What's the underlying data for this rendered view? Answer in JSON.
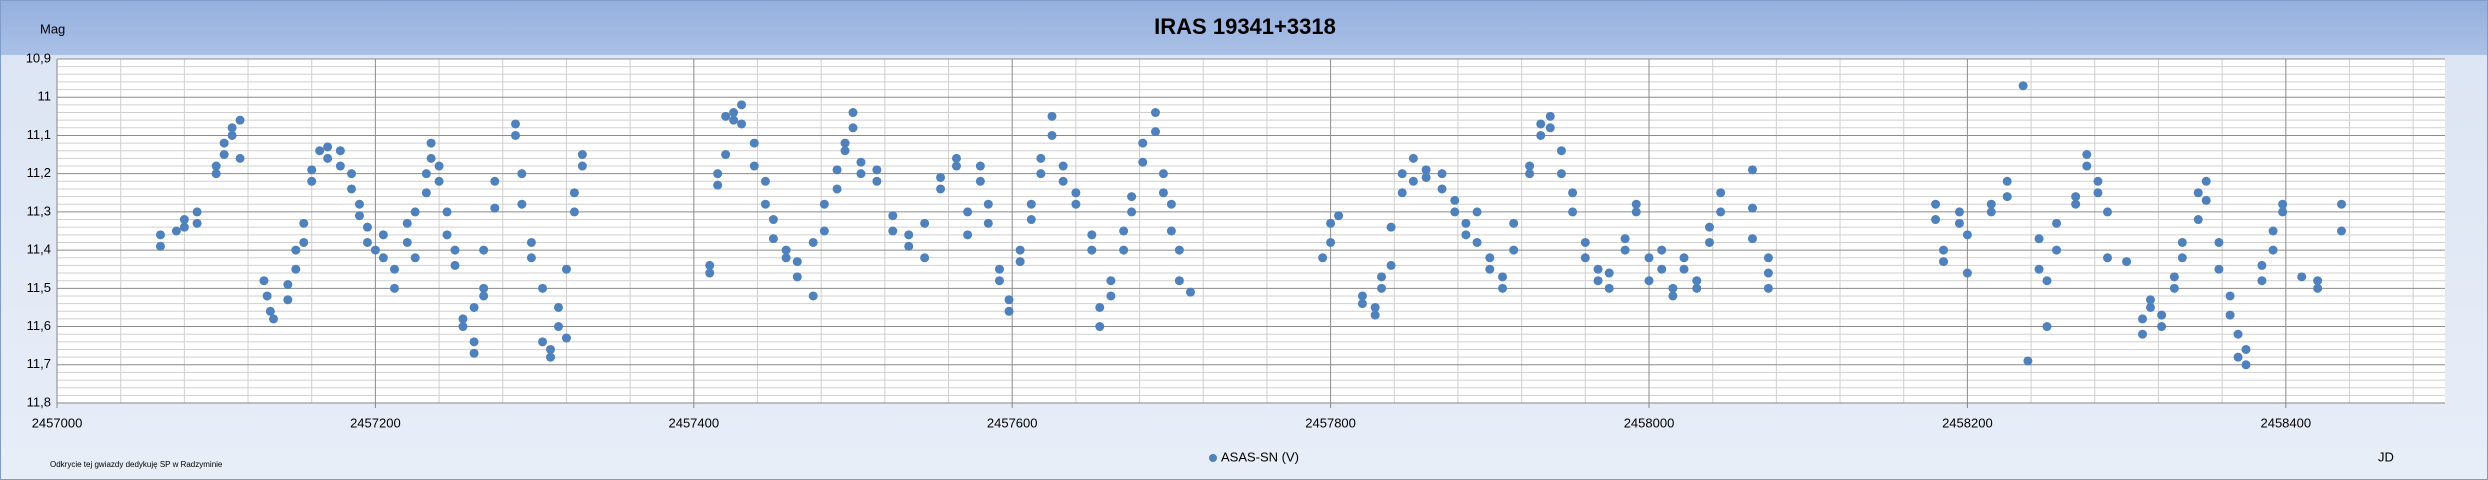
{
  "chart_data": {
    "type": "scatter",
    "title": "IRAS 19341+3318",
    "y_label": "Mag",
    "x_label": "JD",
    "footnote": "Odkrycie tej gwiazdy dedykuję SP w Radzyminie",
    "series": [
      {
        "name": "ASAS-SN (V)",
        "color": "#4f81bd",
        "x": [
          2457065,
          2457065,
          2457075,
          2457080,
          2457080,
          2457088,
          2457088,
          2457100,
          2457100,
          2457105,
          2457105,
          2457110,
          2457110,
          2457115,
          2457115,
          2457130,
          2457132,
          2457134,
          2457136,
          2457145,
          2457145,
          2457150,
          2457150,
          2457155,
          2457155,
          2457160,
          2457160,
          2457165,
          2457170,
          2457170,
          2457178,
          2457178,
          2457185,
          2457185,
          2457190,
          2457190,
          2457195,
          2457195,
          2457200,
          2457205,
          2457205,
          2457212,
          2457212,
          2457220,
          2457220,
          2457225,
          2457225,
          2457232,
          2457232,
          2457235,
          2457235,
          2457240,
          2457240,
          2457245,
          2457245,
          2457250,
          2457250,
          2457255,
          2457255,
          2457262,
          2457262,
          2457262,
          2457268,
          2457268,
          2457268,
          2457275,
          2457275,
          2457288,
          2457288,
          2457292,
          2457292,
          2457298,
          2457298,
          2457305,
          2457305,
          2457310,
          2457310,
          2457315,
          2457315,
          2457320,
          2457320,
          2457325,
          2457325,
          2457330,
          2457330,
          2457410,
          2457410,
          2457415,
          2457415,
          2457420,
          2457420,
          2457425,
          2457425,
          2457430,
          2457430,
          2457438,
          2457438,
          2457445,
          2457445,
          2457450,
          2457450,
          2457458,
          2457458,
          2457465,
          2457465,
          2457475,
          2457475,
          2457482,
          2457482,
          2457490,
          2457490,
          2457495,
          2457495,
          2457500,
          2457500,
          2457505,
          2457505,
          2457515,
          2457515,
          2457525,
          2457525,
          2457535,
          2457535,
          2457545,
          2457545,
          2457555,
          2457555,
          2457565,
          2457565,
          2457572,
          2457572,
          2457580,
          2457580,
          2457585,
          2457585,
          2457592,
          2457592,
          2457598,
          2457598,
          2457605,
          2457605,
          2457612,
          2457612,
          2457618,
          2457618,
          2457625,
          2457625,
          2457632,
          2457632,
          2457640,
          2457640,
          2457650,
          2457650,
          2457655,
          2457655,
          2457662,
          2457662,
          2457670,
          2457670,
          2457675,
          2457675,
          2457682,
          2457682,
          2457690,
          2457690,
          2457695,
          2457695,
          2457700,
          2457700,
          2457705,
          2457705,
          2457712,
          2457795,
          2457800,
          2457800,
          2457805,
          2457820,
          2457820,
          2457828,
          2457828,
          2457832,
          2457832,
          2457838,
          2457838,
          2457845,
          2457845,
          2457852,
          2457852,
          2457860,
          2457860,
          2457870,
          2457870,
          2457878,
          2457878,
          2457885,
          2457885,
          2457892,
          2457892,
          2457900,
          2457900,
          2457908,
          2457908,
          2457915,
          2457915,
          2457925,
          2457925,
          2457932,
          2457932,
          2457938,
          2457938,
          2457945,
          2457945,
          2457952,
          2457952,
          2457960,
          2457960,
          2457968,
          2457968,
          2457975,
          2457975,
          2457985,
          2457985,
          2457992,
          2457992,
          2458000,
          2458000,
          2458008,
          2458008,
          2458015,
          2458015,
          2458022,
          2458022,
          2458030,
          2458030,
          2458038,
          2458038,
          2458045,
          2458045,
          2458065,
          2458065,
          2458065,
          2458075,
          2458075,
          2458075,
          2458180,
          2458180,
          2458185,
          2458185,
          2458195,
          2458195,
          2458200,
          2458200,
          2458215,
          2458215,
          2458225,
          2458225,
          2458235,
          2458238,
          2458245,
          2458245,
          2458250,
          2458250,
          2458256,
          2458256,
          2458268,
          2458268,
          2458275,
          2458275,
          2458282,
          2458282,
          2458288,
          2458288,
          2458300,
          2458310,
          2458310,
          2458315,
          2458315,
          2458322,
          2458322,
          2458330,
          2458330,
          2458335,
          2458335,
          2458345,
          2458345,
          2458350,
          2458350,
          2458358,
          2458358,
          2458365,
          2458365,
          2458370,
          2458370,
          2458375,
          2458375,
          2458385,
          2458385,
          2458392,
          2458392,
          2458398,
          2458398,
          2458410,
          2458420,
          2458420,
          2458435,
          2458435
        ],
        "values": [
          11.36,
          11.39,
          11.35,
          11.32,
          11.34,
          11.3,
          11.33,
          11.2,
          11.18,
          11.12,
          11.15,
          11.08,
          11.1,
          11.06,
          11.16,
          11.48,
          11.52,
          11.56,
          11.58,
          11.49,
          11.53,
          11.4,
          11.45,
          11.33,
          11.38,
          11.22,
          11.19,
          11.14,
          11.13,
          11.16,
          11.14,
          11.18,
          11.2,
          11.24,
          11.28,
          11.31,
          11.34,
          11.38,
          11.4,
          11.36,
          11.42,
          11.45,
          11.5,
          11.38,
          11.33,
          11.3,
          11.42,
          11.25,
          11.2,
          11.12,
          11.16,
          11.18,
          11.22,
          11.3,
          11.36,
          11.4,
          11.44,
          11.58,
          11.6,
          11.64,
          11.67,
          11.55,
          11.5,
          11.52,
          11.4,
          11.22,
          11.29,
          11.07,
          11.1,
          11.2,
          11.28,
          11.38,
          11.42,
          11.5,
          11.64,
          11.68,
          11.66,
          11.55,
          11.6,
          11.63,
          11.45,
          11.3,
          11.25,
          11.15,
          11.18,
          11.44,
          11.46,
          11.2,
          11.23,
          11.15,
          11.05,
          11.04,
          11.06,
          11.02,
          11.07,
          11.12,
          11.18,
          11.22,
          11.28,
          11.32,
          11.37,
          11.4,
          11.42,
          11.43,
          11.47,
          11.52,
          11.38,
          11.35,
          11.28,
          11.24,
          11.19,
          11.12,
          11.14,
          11.04,
          11.08,
          11.2,
          11.17,
          11.19,
          11.22,
          11.31,
          11.35,
          11.36,
          11.39,
          11.42,
          11.33,
          11.24,
          11.21,
          11.16,
          11.18,
          11.3,
          11.36,
          11.18,
          11.22,
          11.28,
          11.33,
          11.45,
          11.48,
          11.53,
          11.56,
          11.43,
          11.4,
          11.32,
          11.28,
          11.2,
          11.16,
          11.05,
          11.1,
          11.18,
          11.22,
          11.25,
          11.28,
          11.36,
          11.4,
          11.55,
          11.6,
          11.52,
          11.48,
          11.4,
          11.35,
          11.3,
          11.26,
          11.17,
          11.12,
          11.04,
          11.09,
          11.2,
          11.25,
          11.28,
          11.35,
          11.4,
          11.48,
          11.51,
          11.42,
          11.38,
          11.33,
          11.31,
          11.52,
          11.54,
          11.55,
          11.57,
          11.5,
          11.47,
          11.44,
          11.34,
          11.25,
          11.2,
          11.16,
          11.22,
          11.19,
          11.21,
          11.2,
          11.24,
          11.27,
          11.3,
          11.33,
          11.36,
          11.3,
          11.38,
          11.42,
          11.45,
          11.5,
          11.47,
          11.4,
          11.33,
          11.2,
          11.18,
          11.1,
          11.07,
          11.05,
          11.08,
          11.14,
          11.2,
          11.25,
          11.3,
          11.38,
          11.42,
          11.45,
          11.48,
          11.5,
          11.46,
          11.4,
          11.37,
          11.3,
          11.28,
          11.42,
          11.48,
          11.4,
          11.45,
          11.5,
          11.52,
          11.45,
          11.42,
          11.48,
          11.5,
          11.38,
          11.34,
          11.3,
          11.25,
          11.19,
          11.29,
          11.37,
          11.42,
          11.46,
          11.5,
          11.28,
          11.32,
          11.4,
          11.43,
          11.3,
          11.33,
          11.36,
          11.46,
          11.28,
          11.3,
          11.22,
          11.26,
          10.97,
          11.69,
          11.37,
          11.45,
          11.48,
          11.6,
          11.33,
          11.4,
          11.28,
          11.26,
          11.15,
          11.18,
          11.22,
          11.25,
          11.3,
          11.42,
          11.43,
          11.62,
          11.58,
          11.55,
          11.53,
          11.57,
          11.6,
          11.5,
          11.47,
          11.42,
          11.38,
          11.32,
          11.25,
          11.22,
          11.27,
          11.38,
          11.45,
          11.52,
          11.57,
          11.62,
          11.68,
          11.66,
          11.7,
          11.48,
          11.44,
          11.4,
          11.35,
          11.3,
          11.28,
          11.47,
          11.48,
          11.5,
          11.28,
          11.35
        ]
      }
    ],
    "xlim": [
      2457000,
      2458500
    ],
    "xticks": [
      2457000,
      2457200,
      2457400,
      2457600,
      2457800,
      2458000,
      2458200,
      2458400
    ],
    "ylim": [
      11.8,
      10.9
    ],
    "yticks": [
      {
        "value": 10.9,
        "label": "10,9"
      },
      11,
      {
        "value": 11.1,
        "label": "11,1"
      },
      {
        "value": 11.2,
        "label": "11,2"
      },
      {
        "value": 11.3,
        "label": "11,3"
      },
      {
        "value": 11.4,
        "label": "11,4"
      },
      {
        "value": 11.5,
        "label": "11,5"
      },
      {
        "value": 11.6,
        "label": "11,6"
      },
      {
        "value": 11.7,
        "label": "11,7"
      },
      {
        "value": 11.8,
        "label": "11,8"
      }
    ],
    "x_minor_ticks": [
      2457040,
      2457080,
      2457120,
      2457160,
      2457240,
      2457280,
      2457320,
      2457360,
      2457440,
      2457480,
      2457520,
      2457560,
      2457640,
      2457680,
      2457720,
      2457760,
      2457840,
      2457880,
      2457920,
      2457960,
      2458040,
      2458080,
      2458120,
      2458160,
      2458240,
      2458280,
      2458320,
      2458360,
      2458440,
      2458480
    ],
    "y_minor_ticks": [
      10.92,
      10.94,
      10.96,
      10.98,
      11.02,
      11.04,
      11.06,
      11.08,
      11.12,
      11.14,
      11.16,
      11.18,
      11.22,
      11.24,
      11.26,
      11.28,
      11.32,
      11.34,
      11.36,
      11.38,
      11.42,
      11.44,
      11.46,
      11.48,
      11.52,
      11.54,
      11.56,
      11.58,
      11.62,
      11.64,
      11.66,
      11.68,
      11.72,
      11.74,
      11.76,
      11.78
    ],
    "grid": true,
    "legend": "bottom"
  }
}
